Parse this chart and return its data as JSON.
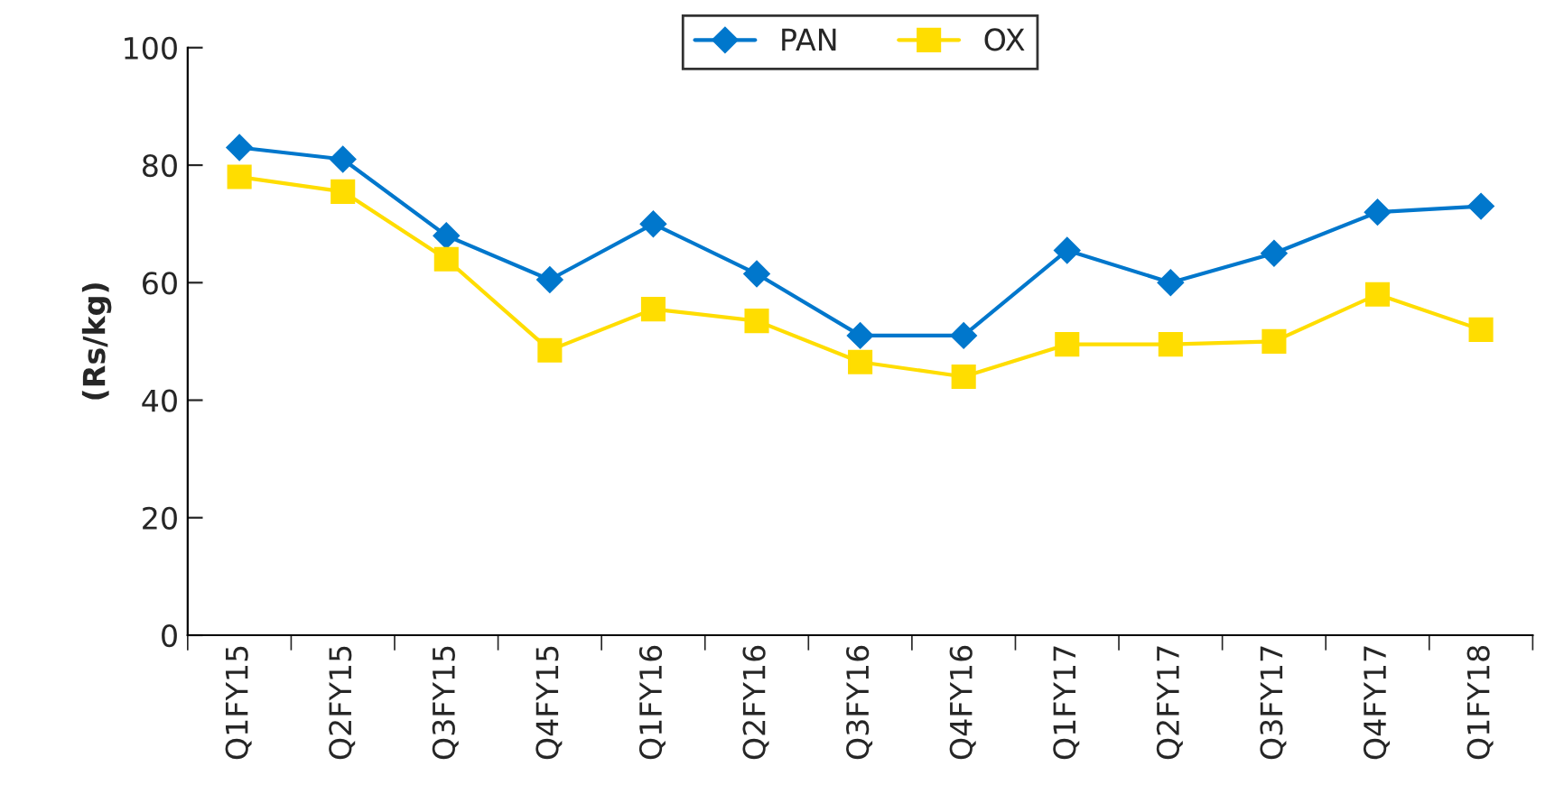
{
  "chart_data": {
    "type": "line",
    "ylabel": "(Rs/kg)",
    "categories": [
      "Q1FY15",
      "Q2FY15",
      "Q3FY15",
      "Q4FY15",
      "Q1FY16",
      "Q2FY16",
      "Q3FY16",
      "Q4FY16",
      "Q1FY17",
      "Q2FY17",
      "Q3FY17",
      "Q4FY17",
      "Q1FY18"
    ],
    "series": [
      {
        "name": "PAN",
        "color": "#0077cc",
        "marker": "diamond",
        "values": [
          83,
          81,
          68,
          60.5,
          70,
          61.5,
          51,
          51,
          65.5,
          60,
          65,
          72,
          73
        ]
      },
      {
        "name": "OX",
        "color": "#ffdd00",
        "marker": "square",
        "values": [
          78,
          75.5,
          64,
          48.5,
          55.5,
          53.5,
          46.5,
          44,
          49.5,
          49.5,
          50,
          58,
          52
        ]
      }
    ],
    "ylim": [
      0,
      100
    ],
    "yticks": [
      0,
      20,
      40,
      60,
      80,
      100
    ],
    "grid": false,
    "legend": "top",
    "line_style": "solid"
  }
}
